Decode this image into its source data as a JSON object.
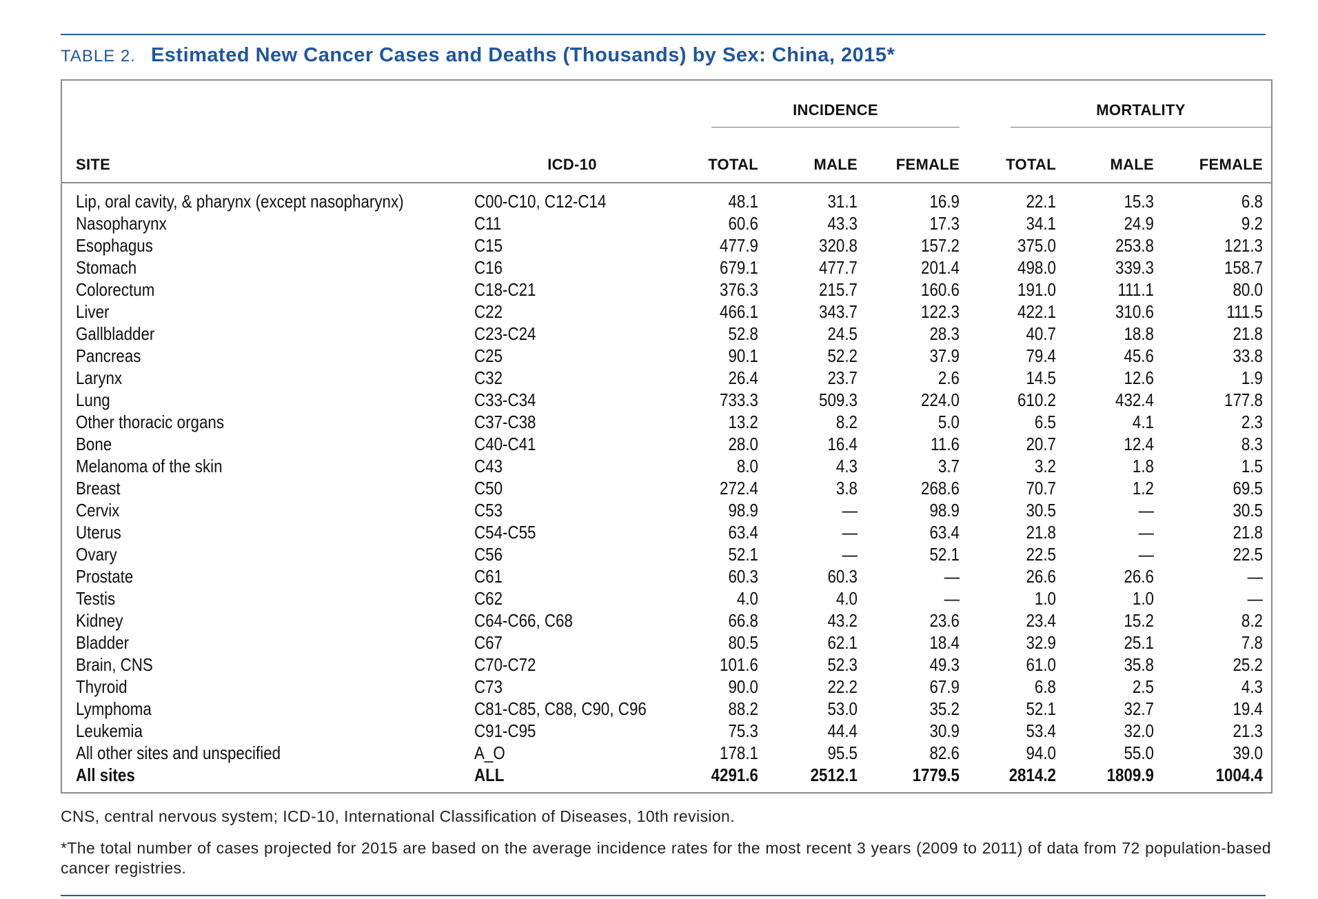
{
  "caption": {
    "label": "TABLE 2.",
    "title": "Estimated New Cancer Cases and Deaths (Thousands) by Sex: China, 2015*"
  },
  "groups": {
    "incidence": "INCIDENCE",
    "mortality": "MORTALITY"
  },
  "columns": {
    "site": "SITE",
    "icd": "ICD-10",
    "inc_total": "TOTAL",
    "inc_male": "MALE",
    "inc_female": "FEMALE",
    "mort_total": "TOTAL",
    "mort_male": "MALE",
    "mort_female": "FEMALE"
  },
  "rows": [
    {
      "site": "Lip, oral cavity, & pharynx (except nasopharynx)",
      "icd": "C00-C10, C12-C14",
      "inc_total": "48.1",
      "inc_male": "31.1",
      "inc_female": "16.9",
      "mort_total": "22.1",
      "mort_male": "15.3",
      "mort_female": "6.8"
    },
    {
      "site": "Nasopharynx",
      "icd": "C11",
      "inc_total": "60.6",
      "inc_male": "43.3",
      "inc_female": "17.3",
      "mort_total": "34.1",
      "mort_male": "24.9",
      "mort_female": "9.2"
    },
    {
      "site": "Esophagus",
      "icd": "C15",
      "inc_total": "477.9",
      "inc_male": "320.8",
      "inc_female": "157.2",
      "mort_total": "375.0",
      "mort_male": "253.8",
      "mort_female": "121.3"
    },
    {
      "site": "Stomach",
      "icd": "C16",
      "inc_total": "679.1",
      "inc_male": "477.7",
      "inc_female": "201.4",
      "mort_total": "498.0",
      "mort_male": "339.3",
      "mort_female": "158.7"
    },
    {
      "site": "Colorectum",
      "icd": "C18-C21",
      "inc_total": "376.3",
      "inc_male": "215.7",
      "inc_female": "160.6",
      "mort_total": "191.0",
      "mort_male": "111.1",
      "mort_female": "80.0"
    },
    {
      "site": "Liver",
      "icd": "C22",
      "inc_total": "466.1",
      "inc_male": "343.7",
      "inc_female": "122.3",
      "mort_total": "422.1",
      "mort_male": "310.6",
      "mort_female": "111.5"
    },
    {
      "site": "Gallbladder",
      "icd": "C23-C24",
      "inc_total": "52.8",
      "inc_male": "24.5",
      "inc_female": "28.3",
      "mort_total": "40.7",
      "mort_male": "18.8",
      "mort_female": "21.8"
    },
    {
      "site": "Pancreas",
      "icd": "C25",
      "inc_total": "90.1",
      "inc_male": "52.2",
      "inc_female": "37.9",
      "mort_total": "79.4",
      "mort_male": "45.6",
      "mort_female": "33.8"
    },
    {
      "site": "Larynx",
      "icd": "C32",
      "inc_total": "26.4",
      "inc_male": "23.7",
      "inc_female": "2.6",
      "mort_total": "14.5",
      "mort_male": "12.6",
      "mort_female": "1.9"
    },
    {
      "site": "Lung",
      "icd": "C33-C34",
      "inc_total": "733.3",
      "inc_male": "509.3",
      "inc_female": "224.0",
      "mort_total": "610.2",
      "mort_male": "432.4",
      "mort_female": "177.8"
    },
    {
      "site": "Other thoracic organs",
      "icd": "C37-C38",
      "inc_total": "13.2",
      "inc_male": "8.2",
      "inc_female": "5.0",
      "mort_total": "6.5",
      "mort_male": "4.1",
      "mort_female": "2.3"
    },
    {
      "site": "Bone",
      "icd": "C40-C41",
      "inc_total": "28.0",
      "inc_male": "16.4",
      "inc_female": "11.6",
      "mort_total": "20.7",
      "mort_male": "12.4",
      "mort_female": "8.3"
    },
    {
      "site": "Melanoma of the skin",
      "icd": "C43",
      "inc_total": "8.0",
      "inc_male": "4.3",
      "inc_female": "3.7",
      "mort_total": "3.2",
      "mort_male": "1.8",
      "mort_female": "1.5"
    },
    {
      "site": "Breast",
      "icd": "C50",
      "inc_total": "272.4",
      "inc_male": "3.8",
      "inc_female": "268.6",
      "mort_total": "70.7",
      "mort_male": "1.2",
      "mort_female": "69.5"
    },
    {
      "site": "Cervix",
      "icd": "C53",
      "inc_total": "98.9",
      "inc_male": "—",
      "inc_female": "98.9",
      "mort_total": "30.5",
      "mort_male": "—",
      "mort_female": "30.5"
    },
    {
      "site": "Uterus",
      "icd": "C54-C55",
      "inc_total": "63.4",
      "inc_male": "—",
      "inc_female": "63.4",
      "mort_total": "21.8",
      "mort_male": "—",
      "mort_female": "21.8"
    },
    {
      "site": "Ovary",
      "icd": "C56",
      "inc_total": "52.1",
      "inc_male": "—",
      "inc_female": "52.1",
      "mort_total": "22.5",
      "mort_male": "—",
      "mort_female": "22.5"
    },
    {
      "site": "Prostate",
      "icd": "C61",
      "inc_total": "60.3",
      "inc_male": "60.3",
      "inc_female": "—",
      "mort_total": "26.6",
      "mort_male": "26.6",
      "mort_female": "—"
    },
    {
      "site": "Testis",
      "icd": "C62",
      "inc_total": "4.0",
      "inc_male": "4.0",
      "inc_female": "—",
      "mort_total": "1.0",
      "mort_male": "1.0",
      "mort_female": "—"
    },
    {
      "site": "Kidney",
      "icd": "C64-C66, C68",
      "inc_total": "66.8",
      "inc_male": "43.2",
      "inc_female": "23.6",
      "mort_total": "23.4",
      "mort_male": "15.2",
      "mort_female": "8.2"
    },
    {
      "site": "Bladder",
      "icd": "C67",
      "inc_total": "80.5",
      "inc_male": "62.1",
      "inc_female": "18.4",
      "mort_total": "32.9",
      "mort_male": "25.1",
      "mort_female": "7.8"
    },
    {
      "site": "Brain, CNS",
      "icd": "C70-C72",
      "inc_total": "101.6",
      "inc_male": "52.3",
      "inc_female": "49.3",
      "mort_total": "61.0",
      "mort_male": "35.8",
      "mort_female": "25.2"
    },
    {
      "site": "Thyroid",
      "icd": "C73",
      "inc_total": "90.0",
      "inc_male": "22.2",
      "inc_female": "67.9",
      "mort_total": "6.8",
      "mort_male": "2.5",
      "mort_female": "4.3"
    },
    {
      "site": "Lymphoma",
      "icd": "C81-C85, C88, C90, C96",
      "inc_total": "88.2",
      "inc_male": "53.0",
      "inc_female": "35.2",
      "mort_total": "52.1",
      "mort_male": "32.7",
      "mort_female": "19.4"
    },
    {
      "site": "Leukemia",
      "icd": "C91-C95",
      "inc_total": "75.3",
      "inc_male": "44.4",
      "inc_female": "30.9",
      "mort_total": "53.4",
      "mort_male": "32.0",
      "mort_female": "21.3"
    },
    {
      "site": "All other sites and unspecified",
      "icd": "A_O",
      "inc_total": "178.1",
      "inc_male": "95.5",
      "inc_female": "82.6",
      "mort_total": "94.0",
      "mort_male": "55.0",
      "mort_female": "39.0"
    }
  ],
  "total_row": {
    "site": "All sites",
    "icd": "ALL",
    "inc_total": "4291.6",
    "inc_male": "2512.1",
    "inc_female": "1779.5",
    "mort_total": "2814.2",
    "mort_male": "1809.9",
    "mort_female": "1004.4"
  },
  "footnotes": {
    "abbreviations": "CNS, central nervous system; ICD-10, International Classification of Diseases, 10th revision.",
    "note": "*The total number of cases projected for 2015 are based on the average incidence rates for the most recent 3 years (2009 to 2011) of data from 72 population-based cancer registries."
  }
}
